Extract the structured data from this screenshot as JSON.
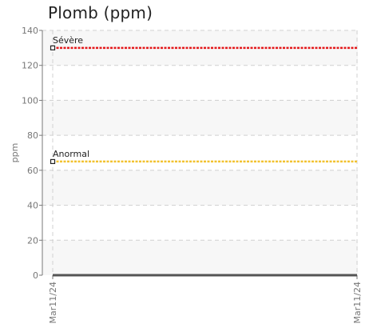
{
  "chart_data": {
    "type": "line",
    "title": "Plomb (ppm)",
    "ylabel": "ppm",
    "xlabel": "",
    "ylim": [
      0,
      140
    ],
    "yticks": [
      0,
      20,
      40,
      60,
      80,
      100,
      120,
      140
    ],
    "x_tick_labels": [
      "Mar11/24",
      "Mar11/24"
    ],
    "grid": true,
    "series": [
      {
        "values": [
          0,
          0
        ],
        "color": "#555555"
      }
    ],
    "thresholds": [
      {
        "label": "Sévère",
        "value": 130,
        "color": "#e31a1c"
      },
      {
        "label": "Anormal",
        "value": 65,
        "color": "#f2c230"
      }
    ]
  }
}
